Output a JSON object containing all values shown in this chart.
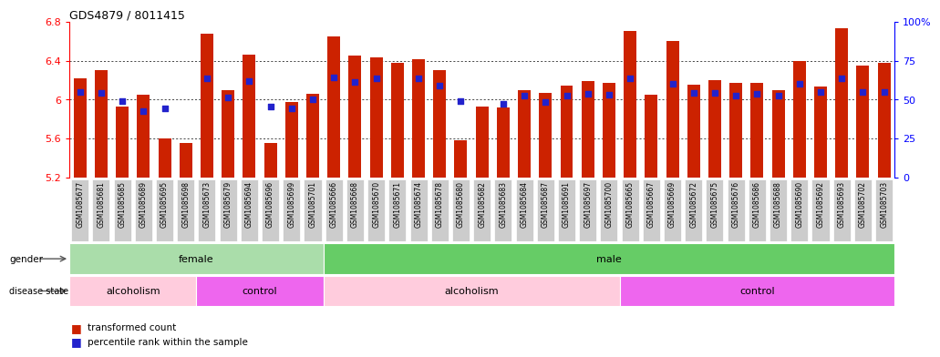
{
  "title": "GDS4879 / 8011415",
  "samples": [
    "GSM1085677",
    "GSM1085681",
    "GSM1085685",
    "GSM1085689",
    "GSM1085695",
    "GSM1085698",
    "GSM1085673",
    "GSM1085679",
    "GSM1085694",
    "GSM1085696",
    "GSM1085699",
    "GSM1085701",
    "GSM1085666",
    "GSM1085668",
    "GSM1085670",
    "GSM1085671",
    "GSM1085674",
    "GSM1085678",
    "GSM1085680",
    "GSM1085682",
    "GSM1085683",
    "GSM1085684",
    "GSM1085687",
    "GSM1085691",
    "GSM1085697",
    "GSM1085700",
    "GSM1085665",
    "GSM1085667",
    "GSM1085669",
    "GSM1085672",
    "GSM1085675",
    "GSM1085676",
    "GSM1085686",
    "GSM1085688",
    "GSM1085690",
    "GSM1085692",
    "GSM1085693",
    "GSM1085702",
    "GSM1085703"
  ],
  "bar_values": [
    6.22,
    6.3,
    5.93,
    6.05,
    5.6,
    5.55,
    6.68,
    6.1,
    6.46,
    5.55,
    5.97,
    6.06,
    6.65,
    6.45,
    6.43,
    6.38,
    6.41,
    6.3,
    5.58,
    5.93,
    5.92,
    6.1,
    6.07,
    6.14,
    6.19,
    6.17,
    6.7,
    6.05,
    6.6,
    6.15,
    6.2,
    6.17,
    6.17,
    6.1,
    6.4,
    6.13,
    6.73,
    6.35,
    6.38
  ],
  "blue_dot_values": [
    6.08,
    6.07,
    5.98,
    5.88,
    5.91,
    null,
    6.22,
    6.02,
    6.19,
    5.93,
    5.91,
    6.0,
    6.23,
    6.18,
    6.22,
    null,
    6.22,
    6.14,
    5.98,
    null,
    5.96,
    6.04,
    5.97,
    6.04,
    6.06,
    6.05,
    6.22,
    null,
    6.16,
    6.07,
    6.07,
    6.04,
    6.06,
    6.04,
    6.16,
    6.08,
    6.22,
    6.08,
    6.08
  ],
  "gender_blocks": [
    {
      "label": "female",
      "start": 0,
      "end": 12,
      "color": "#AADDAA"
    },
    {
      "label": "male",
      "start": 12,
      "end": 39,
      "color": "#66CC66"
    }
  ],
  "disease_blocks": [
    {
      "label": "alcoholism",
      "start": 0,
      "end": 6,
      "color": "#FFCCDD"
    },
    {
      "label": "control",
      "start": 6,
      "end": 12,
      "color": "#EE66EE"
    },
    {
      "label": "alcoholism",
      "start": 12,
      "end": 26,
      "color": "#FFCCDD"
    },
    {
      "label": "control",
      "start": 26,
      "end": 39,
      "color": "#EE66EE"
    }
  ],
  "bar_color": "#CC2200",
  "dot_color": "#2222CC",
  "bar_base": 5.2,
  "ylim_left": [
    5.2,
    6.8
  ],
  "yticks_left": [
    5.2,
    5.6,
    6.0,
    6.4,
    6.8
  ],
  "ytick_labels_left": [
    "5.2",
    "5.6",
    "6",
    "6.4",
    "6.8"
  ],
  "yticks_right": [
    0,
    25,
    50,
    75,
    100
  ],
  "ytick_labels_right": [
    "0",
    "25",
    "50",
    "75",
    "100%"
  ],
  "grid_values": [
    5.6,
    6.0,
    6.4
  ],
  "legend_items": [
    {
      "color": "#CC2200",
      "label": "transformed count"
    },
    {
      "color": "#2222CC",
      "label": "percentile rank within the sample"
    }
  ],
  "label_font_size": 7,
  "tick_font_size": 8
}
